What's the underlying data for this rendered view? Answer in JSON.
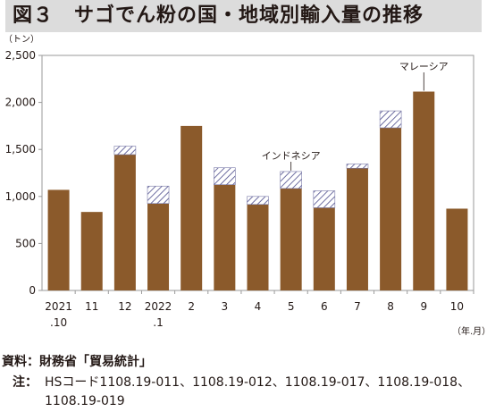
{
  "title": "図３　サゴでん粉の国・地域別輸入量の推移",
  "chart_data": {
    "type": "bar",
    "stacked": true,
    "y_unit_label": "（トン）",
    "x_unit_label": "（年.月）",
    "ylim": [
      0,
      2500
    ],
    "yticks": [
      "0",
      "500",
      "1,000",
      "1,500",
      "2,000",
      "2,500"
    ],
    "ytick_values": [
      0,
      500,
      1000,
      1500,
      2000,
      2500
    ],
    "categories": [
      [
        "2021",
        ".10"
      ],
      [
        "11"
      ],
      [
        "12"
      ],
      [
        "2022",
        ".1"
      ],
      [
        "2"
      ],
      [
        "3"
      ],
      [
        "4"
      ],
      [
        "5"
      ],
      [
        "6"
      ],
      [
        "7"
      ],
      [
        "8"
      ],
      [
        "9"
      ],
      [
        "10"
      ]
    ],
    "series": [
      {
        "name": "マレーシア",
        "color": "#8b5a2b",
        "values": [
          1070,
          835,
          1445,
          925,
          1750,
          1125,
          915,
          1085,
          880,
          1300,
          1730,
          2115,
          870
        ]
      },
      {
        "name": "インドネシア",
        "color": "#4a4a8a",
        "pattern": "hatch",
        "values": [
          0,
          0,
          90,
          185,
          0,
          180,
          85,
          180,
          180,
          45,
          180,
          0,
          0
        ]
      }
    ],
    "annotations": [
      {
        "text": "マレーシア",
        "category_index": 11
      },
      {
        "text": "インドネシア",
        "category_index": 7
      }
    ],
    "grid": false,
    "legend": "none"
  },
  "source": "資料：財務省「貿易統計」",
  "note_label": "注：",
  "note_text": "HSコード1108.19-011、1108.19-012、1108.19-017、1108.19-018、1108.19-019"
}
